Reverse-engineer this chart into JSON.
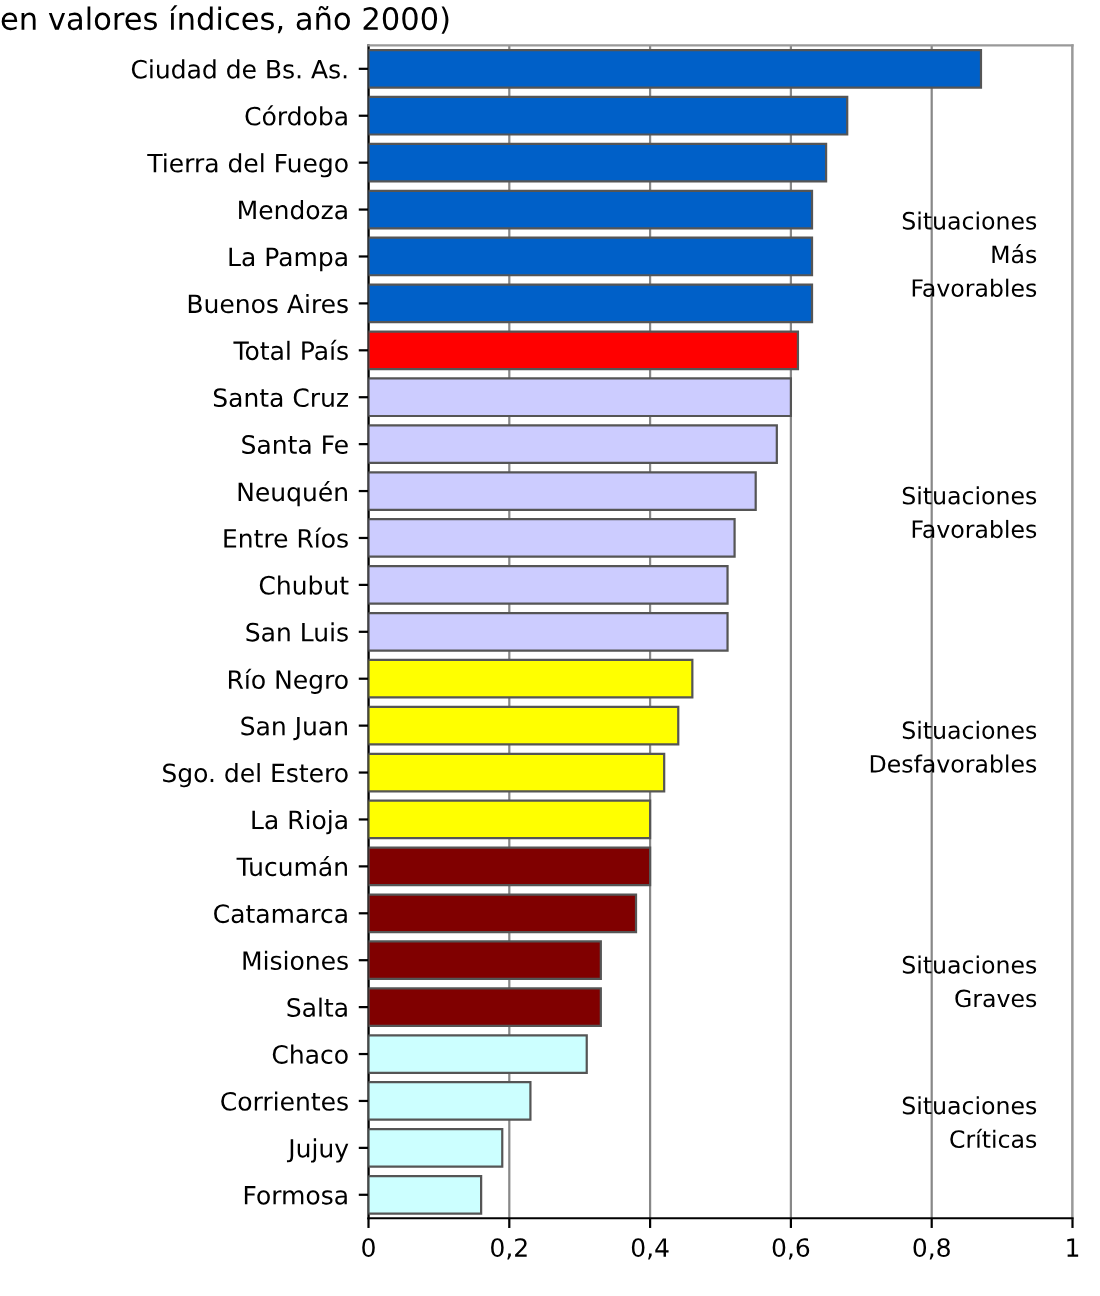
{
  "chart_data": {
    "type": "bar",
    "orientation": "horizontal",
    "title": "en valores índices, año 2000)",
    "categories": [
      "Ciudad de Bs. As.",
      "Córdoba",
      "Tierra del Fuego",
      "Mendoza",
      "La Pampa",
      "Buenos Aires",
      "Total País",
      "Santa Cruz",
      "Santa Fe",
      "Neuquén",
      "Entre Ríos",
      "Chubut",
      "San Luis",
      "Río Negro",
      "San Juan",
      "Sgo. del Estero",
      "La Rioja",
      "Tucumán",
      "Catamarca",
      "Misiones",
      "Salta",
      "Chaco",
      "Corrientes",
      "Jujuy",
      "Formosa"
    ],
    "values": [
      0.87,
      0.68,
      0.65,
      0.63,
      0.63,
      0.63,
      0.61,
      0.6,
      0.58,
      0.55,
      0.52,
      0.51,
      0.51,
      0.46,
      0.44,
      0.42,
      0.4,
      0.4,
      0.38,
      0.33,
      0.33,
      0.31,
      0.23,
      0.19,
      0.16
    ],
    "colors": [
      "#0060c8",
      "#0060c8",
      "#0060c8",
      "#0060c8",
      "#0060c8",
      "#0060c8",
      "#ff0000",
      "#ccccff",
      "#ccccff",
      "#ccccff",
      "#ccccff",
      "#ccccff",
      "#ccccff",
      "#ffff00",
      "#ffff00",
      "#ffff00",
      "#ffff00",
      "#800000",
      "#800000",
      "#800000",
      "#800000",
      "#ccffff",
      "#ccffff",
      "#ccffff",
      "#ccffff"
    ],
    "xlim": [
      0,
      1
    ],
    "xticks": [
      {
        "value": 0,
        "label": "0"
      },
      {
        "value": 0.2,
        "label": "0,2"
      },
      {
        "value": 0.4,
        "label": "0,4"
      },
      {
        "value": 0.6,
        "label": "0,6"
      },
      {
        "value": 0.8,
        "label": "0,8"
      },
      {
        "value": 1,
        "label": "1"
      }
    ],
    "grid": "x",
    "annotations": [
      "Situaciones\nMás\nFavorables",
      "Situaciones\nFavorables",
      "Situaciones\nDesfavorables",
      "Situaciones\nGraves",
      "Situaciones\nCríticas"
    ]
  }
}
